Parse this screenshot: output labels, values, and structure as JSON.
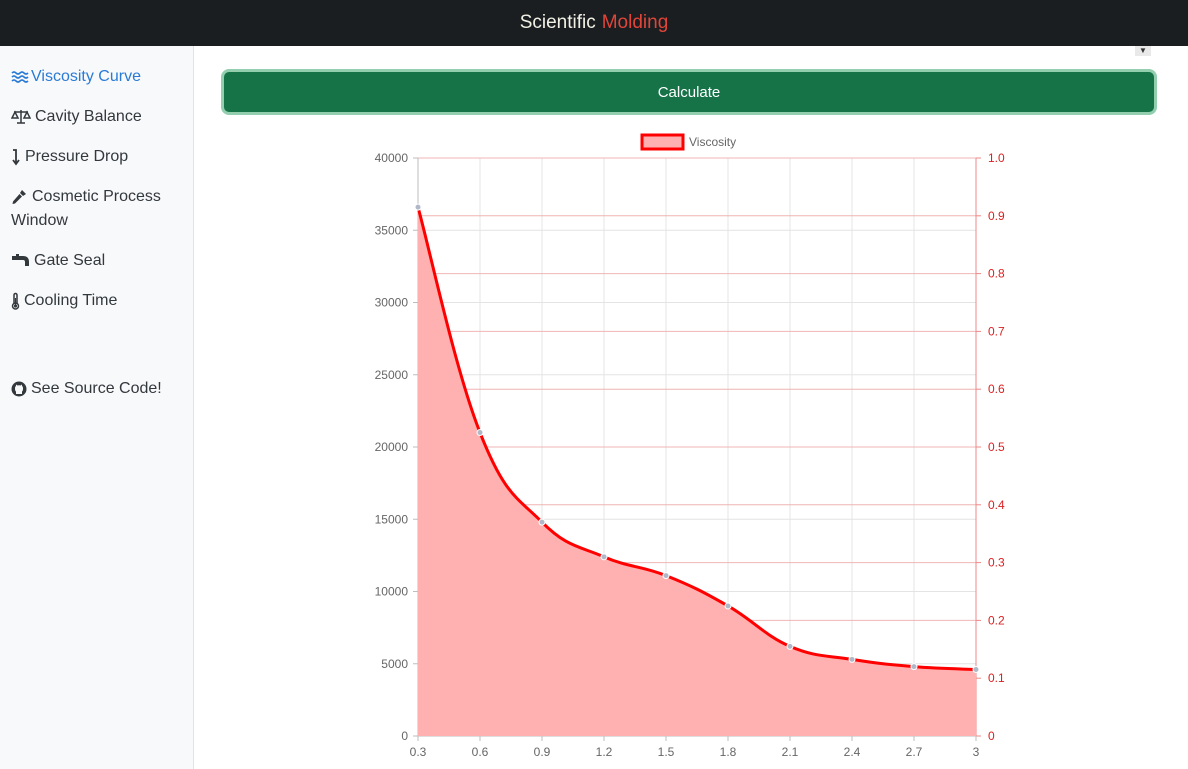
{
  "header": {
    "title_main": "Scientific",
    "title_accent": "Molding"
  },
  "sidebar": {
    "items": [
      {
        "label": "Viscosity Curve",
        "icon": "waves-icon",
        "active": true
      },
      {
        "label": "Cavity Balance",
        "icon": "scale-icon",
        "active": false
      },
      {
        "label": "Pressure Drop",
        "icon": "arrow-down-icon",
        "active": false
      },
      {
        "label": "Cosmetic Process Window",
        "icon": "eyedropper-icon",
        "active": false
      },
      {
        "label": "Gate Seal",
        "icon": "faucet-icon",
        "active": false
      },
      {
        "label": "Cooling Time",
        "icon": "thermometer-icon",
        "active": false
      }
    ],
    "source_link": {
      "label": "See Source Code!",
      "icon": "github-icon"
    }
  },
  "main": {
    "calculate_label": "Calculate",
    "scroll_caret": "▼"
  },
  "colors": {
    "accent": "#e0453a",
    "button": "#157347",
    "series_line": "#ff0000",
    "series_fill": "#ffb0b0",
    "right_axis": "#dc2020",
    "nav_active": "#2a7bd6"
  },
  "chart_data": {
    "type": "area",
    "legend": [
      "Viscosity"
    ],
    "legend_position": "top-center",
    "x": [
      0.3,
      0.6,
      0.9,
      1.2,
      1.5,
      1.8,
      2.1,
      2.4,
      2.7,
      3
    ],
    "x_tick_labels": [
      "0.3",
      "0.6",
      "0.9",
      "1.2",
      "1.5",
      "1.8",
      "2.1",
      "2.4",
      "2.7",
      "3"
    ],
    "series": [
      {
        "name": "Viscosity",
        "values": [
          36600,
          21000,
          14800,
          12400,
          11100,
          9000,
          6200,
          5300,
          4800,
          4600
        ]
      }
    ],
    "ylim": [
      0,
      40000
    ],
    "y_tick_labels": [
      "0",
      "5000",
      "10000",
      "15000",
      "20000",
      "25000",
      "30000",
      "35000",
      "40000"
    ],
    "y2lim": [
      0,
      1
    ],
    "y2_tick_labels": [
      "0",
      "0.1",
      "0.2",
      "0.3",
      "0.4",
      "0.5",
      "0.6",
      "0.7",
      "0.8",
      "0.9",
      "1.0"
    ],
    "grid": true
  }
}
